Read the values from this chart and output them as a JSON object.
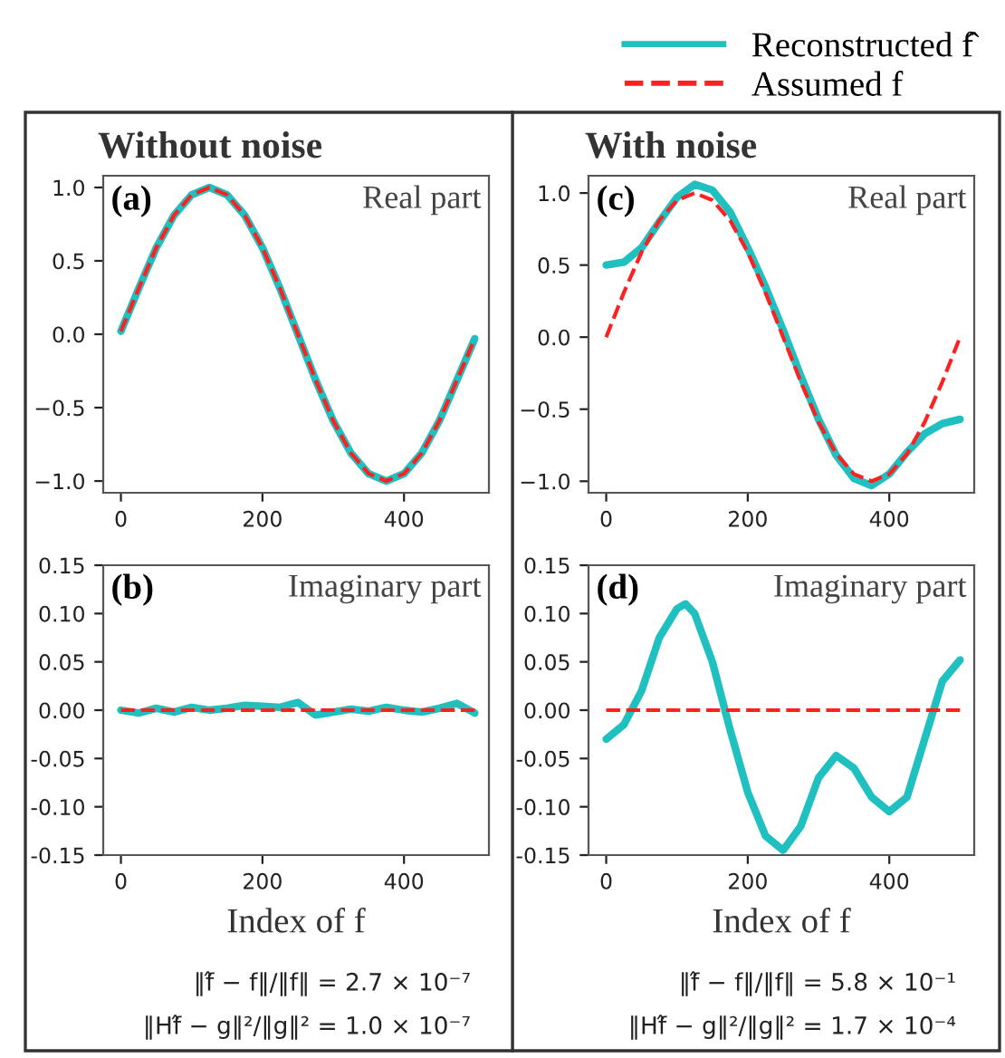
{
  "chart_data": [
    {
      "type": "line",
      "title": "Without noise",
      "legend": "top right",
      "annotations": [
        "(a)",
        "Real part"
      ],
      "xlim": [
        -25,
        520
      ],
      "xticks": [
        0,
        200,
        400
      ],
      "ylim": [
        -1.08,
        1.08
      ],
      "yticks": [
        {
          "value": -1.0,
          "label": "−1.0"
        },
        {
          "value": -0.5,
          "label": "−0.5"
        },
        {
          "value": 0.0,
          "label": "0.0"
        },
        {
          "value": 0.5,
          "label": "0.5"
        },
        {
          "value": 1.0,
          "label": "1.0"
        }
      ],
      "x": [
        0,
        25,
        50,
        75,
        100,
        125,
        150,
        175,
        200,
        225,
        250,
        275,
        300,
        325,
        350,
        375,
        400,
        425,
        450,
        475,
        500
      ],
      "series": [
        {
          "name": "Reconstructed f̂",
          "color": "#20c0c0",
          "line_style": "solid",
          "values": [
            0.02,
            0.31,
            0.59,
            0.81,
            0.95,
            1.0,
            0.95,
            0.81,
            0.59,
            0.31,
            0,
            -0.31,
            -0.59,
            -0.81,
            -0.95,
            -1.0,
            -0.95,
            -0.81,
            -0.59,
            -0.31,
            -0.03
          ]
        },
        {
          "name": "Assumed f",
          "color": "#ff2020",
          "line_style": "dashed",
          "values": [
            0.02,
            0.31,
            0.59,
            0.81,
            0.95,
            1.0,
            0.95,
            0.81,
            0.59,
            0.31,
            0,
            -0.31,
            -0.59,
            -0.81,
            -0.95,
            -1.0,
            -0.95,
            -0.81,
            -0.59,
            -0.31,
            -0.03
          ]
        }
      ]
    },
    {
      "type": "line",
      "title": "With noise",
      "annotations": [
        "(c)",
        "Real part"
      ],
      "xlim": [
        -25,
        520
      ],
      "xticks": [
        0,
        200,
        400
      ],
      "ylim": [
        -1.08,
        1.12
      ],
      "yticks": [
        {
          "value": -1.0,
          "label": "−1.0"
        },
        {
          "value": -0.5,
          "label": "−0.5"
        },
        {
          "value": 0.0,
          "label": "0.0"
        },
        {
          "value": 0.5,
          "label": "0.5"
        },
        {
          "value": 1.0,
          "label": "1.0"
        }
      ],
      "x": [
        0,
        25,
        50,
        75,
        100,
        125,
        150,
        175,
        200,
        225,
        250,
        275,
        300,
        325,
        350,
        375,
        400,
        425,
        450,
        475,
        500
      ],
      "series": [
        {
          "color": "#20c0c0",
          "line_style": "solid",
          "values": [
            0.5,
            0.52,
            0.62,
            0.8,
            0.97,
            1.06,
            1.02,
            0.87,
            0.62,
            0.35,
            0.05,
            -0.27,
            -0.57,
            -0.82,
            -0.98,
            -1.03,
            -0.95,
            -0.8,
            -0.67,
            -0.6,
            -0.57
          ]
        },
        {
          "color": "#ff2020",
          "line_style": "dashed",
          "values": [
            0.0,
            0.31,
            0.59,
            0.81,
            0.95,
            1.0,
            0.95,
            0.81,
            0.59,
            0.31,
            0,
            -0.31,
            -0.59,
            -0.81,
            -0.95,
            -1.0,
            -0.95,
            -0.81,
            -0.59,
            -0.31,
            0.0
          ]
        }
      ]
    },
    {
      "type": "line",
      "xlabel": "Index of f",
      "annotations": [
        "(b)",
        "Imaginary part",
        "‖f̂ − f‖/‖f‖ = 2.7 × 10⁻⁷",
        "‖Hf̂ − g‖²/‖g‖² = 1.0 × 10⁻⁷"
      ],
      "xlim": [
        -25,
        520
      ],
      "xticks": [
        0,
        200,
        400
      ],
      "ylim": [
        -0.15,
        0.15
      ],
      "yticks": [
        {
          "value": -0.15,
          "label": "-0.15"
        },
        {
          "value": -0.1,
          "label": "-0.10"
        },
        {
          "value": -0.05,
          "label": "-0.05"
        },
        {
          "value": 0.0,
          "label": "0.00"
        },
        {
          "value": 0.05,
          "label": "0.05"
        },
        {
          "value": 0.1,
          "label": "0.10"
        },
        {
          "value": 0.15,
          "label": "0.15"
        }
      ],
      "x": [
        0,
        25,
        50,
        75,
        100,
        125,
        150,
        175,
        200,
        225,
        250,
        275,
        300,
        325,
        350,
        375,
        400,
        425,
        450,
        475,
        500
      ],
      "series": [
        {
          "color": "#20c0c0",
          "line_style": "solid",
          "values": [
            0,
            -0.003,
            0.002,
            -0.002,
            0.003,
            0,
            0.002,
            0.005,
            0.004,
            0.003,
            0.008,
            -0.005,
            -0.002,
            0.001,
            -0.001,
            0.003,
            0,
            -0.002,
            0.002,
            0.007,
            -0.003
          ]
        },
        {
          "color": "#ff2020",
          "line_style": "dashed",
          "values": [
            0,
            0,
            0,
            0,
            0,
            0,
            0,
            0,
            0,
            0,
            0,
            0,
            0,
            0,
            0,
            0,
            0,
            0,
            0,
            0,
            0
          ]
        }
      ]
    },
    {
      "type": "line",
      "xlabel": "Index of f",
      "annotations": [
        "(d)",
        "Imaginary part",
        "‖f̂ − f‖/‖f‖ = 5.8 × 10⁻¹",
        "‖Hf̂ − g‖²/‖g‖² = 1.7 × 10⁻⁴"
      ],
      "xlim": [
        -25,
        520
      ],
      "xticks": [
        0,
        200,
        400
      ],
      "ylim": [
        -0.15,
        0.15
      ],
      "yticks": [
        {
          "value": -0.15,
          "label": "-0.15"
        },
        {
          "value": -0.1,
          "label": "-0.10"
        },
        {
          "value": -0.05,
          "label": "-0.05"
        },
        {
          "value": 0.0,
          "label": "0.00"
        },
        {
          "value": 0.05,
          "label": "0.05"
        },
        {
          "value": 0.1,
          "label": "0.10"
        },
        {
          "value": 0.15,
          "label": "0.15"
        }
      ],
      "series": [
        {
          "color": "#20c0c0",
          "line_style": "solid",
          "x": [
            0,
            25,
            50,
            75,
            100,
            112,
            125,
            150,
            175,
            200,
            225,
            250,
            275,
            300,
            325,
            350,
            375,
            400,
            425,
            450,
            475,
            500
          ],
          "values": [
            -0.03,
            -0.015,
            0.02,
            0.075,
            0.105,
            0.11,
            0.1,
            0.05,
            -0.02,
            -0.085,
            -0.13,
            -0.145,
            -0.12,
            -0.07,
            -0.047,
            -0.06,
            -0.09,
            -0.105,
            -0.09,
            -0.03,
            0.03,
            0.052
          ]
        },
        {
          "color": "#ff2020",
          "line_style": "dashed",
          "x": [
            0,
            500
          ],
          "values": [
            0,
            0
          ]
        }
      ]
    }
  ]
}
